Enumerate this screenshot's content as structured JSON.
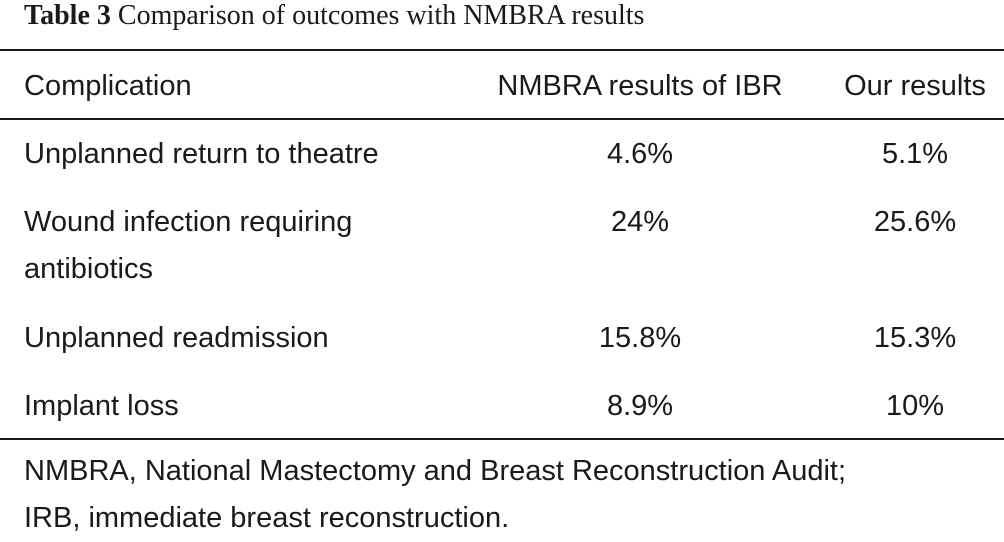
{
  "table": {
    "caption_label": "Table 3",
    "caption_text": "Comparison of outcomes with NMBRA results",
    "footnote_line1": "NMBRA, National Mastectomy and Breast Reconstruction Audit;",
    "footnote_line2": "IRB, immediate breast reconstruction."
  },
  "chart_data": {
    "type": "table",
    "columns": [
      "Complication",
      "NMBRA results of IBR",
      "Our results"
    ],
    "rows": [
      [
        "Unplanned return to theatre",
        "4.6%",
        "5.1%"
      ],
      [
        "Wound infection requiring antibiotics",
        "24%",
        "25.6%"
      ],
      [
        "Unplanned readmission",
        "15.8%",
        "15.3%"
      ],
      [
        "Implant loss",
        "8.9%",
        "10%"
      ]
    ],
    "row_text_lines": {
      "r1_l1": "Wound infection requiring",
      "r1_l2": "antibiotics"
    }
  }
}
